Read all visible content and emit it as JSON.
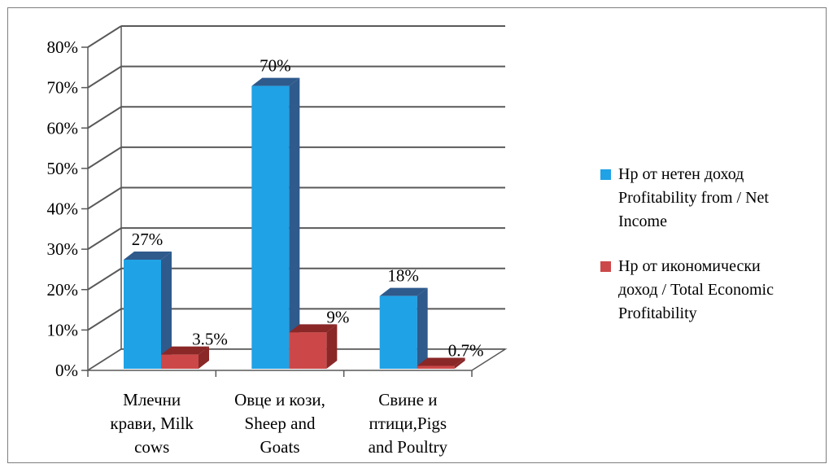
{
  "chart_data": {
    "type": "bar",
    "categories": [
      [
        "Млечни",
        "крави, Milk",
        "cows"
      ],
      [
        "Овце и кози,",
        "Sheep and",
        "Goats"
      ],
      [
        "Свине и",
        "птици,Pigs",
        "and Poultry"
      ]
    ],
    "series": [
      {
        "name": "Нр от нетен доход Profitability from / Net Income",
        "legend_lines": [
          "Нр от нетен доход",
          "Profitability from / Net",
          "Income"
        ],
        "values": [
          27,
          70,
          18
        ],
        "labels": [
          "27%",
          "70%",
          "18%"
        ],
        "color": "#1fa2e6",
        "side_color": "#2f5a8c",
        "top_color": "#2f5a8c"
      },
      {
        "name": "Нр от икономически доход / Total Economic Profitability",
        "legend_lines": [
          "Нр от икономически",
          "доход / Total Economic",
          "Profitability"
        ],
        "values": [
          3.5,
          9,
          0.7
        ],
        "labels": [
          "3.5%",
          "9%",
          "0.7%"
        ],
        "color": "#cc4848",
        "side_color": "#8a2727",
        "top_color": "#8a2727"
      }
    ],
    "yticks": [
      "0%",
      "10%",
      "20%",
      "30%",
      "40%",
      "50%",
      "60%",
      "70%",
      "80%"
    ],
    "ylim": [
      0,
      80
    ],
    "grid": true,
    "legend": "right",
    "title": "",
    "xlabel": "",
    "ylabel": ""
  }
}
